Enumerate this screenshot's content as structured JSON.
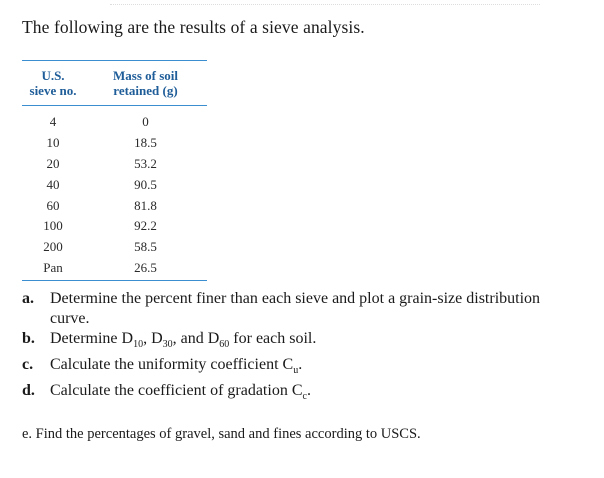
{
  "intro": "The following are the results of a sieve analysis.",
  "table": {
    "header_col1_line1": "U.S.",
    "header_col1_line2": "sieve no.",
    "header_col2_line1": "Mass of soil",
    "header_col2_line2": "retained (g)",
    "rows": [
      {
        "sieve": "4",
        "mass": "0"
      },
      {
        "sieve": "10",
        "mass": "18.5"
      },
      {
        "sieve": "20",
        "mass": "53.2"
      },
      {
        "sieve": "40",
        "mass": "90.5"
      },
      {
        "sieve": "60",
        "mass": "81.8"
      },
      {
        "sieve": "100",
        "mass": "92.2"
      },
      {
        "sieve": "200",
        "mass": "58.5"
      },
      {
        "sieve": "Pan",
        "mass": "26.5"
      }
    ]
  },
  "questions": {
    "a_label": "a.",
    "a_text": "Determine the percent finer than each sieve and plot a grain-size distribution curve.",
    "b_label": "b.",
    "b_pre": "Determine D",
    "b_sub1": "10",
    "b_mid1": ", D",
    "b_sub2": "30",
    "b_mid2": ", and D",
    "b_sub3": "60",
    "b_post": " for each soil.",
    "c_label": "c.",
    "c_pre": "Calculate the uniformity coefficient C",
    "c_sub": "u",
    "c_post": ".",
    "d_label": "d.",
    "d_pre": "Calculate the coefficient of gradation C",
    "d_sub": "c",
    "d_post": ".",
    "e_text": "e. Find the percentages of gravel, sand and fines according to USCS."
  }
}
